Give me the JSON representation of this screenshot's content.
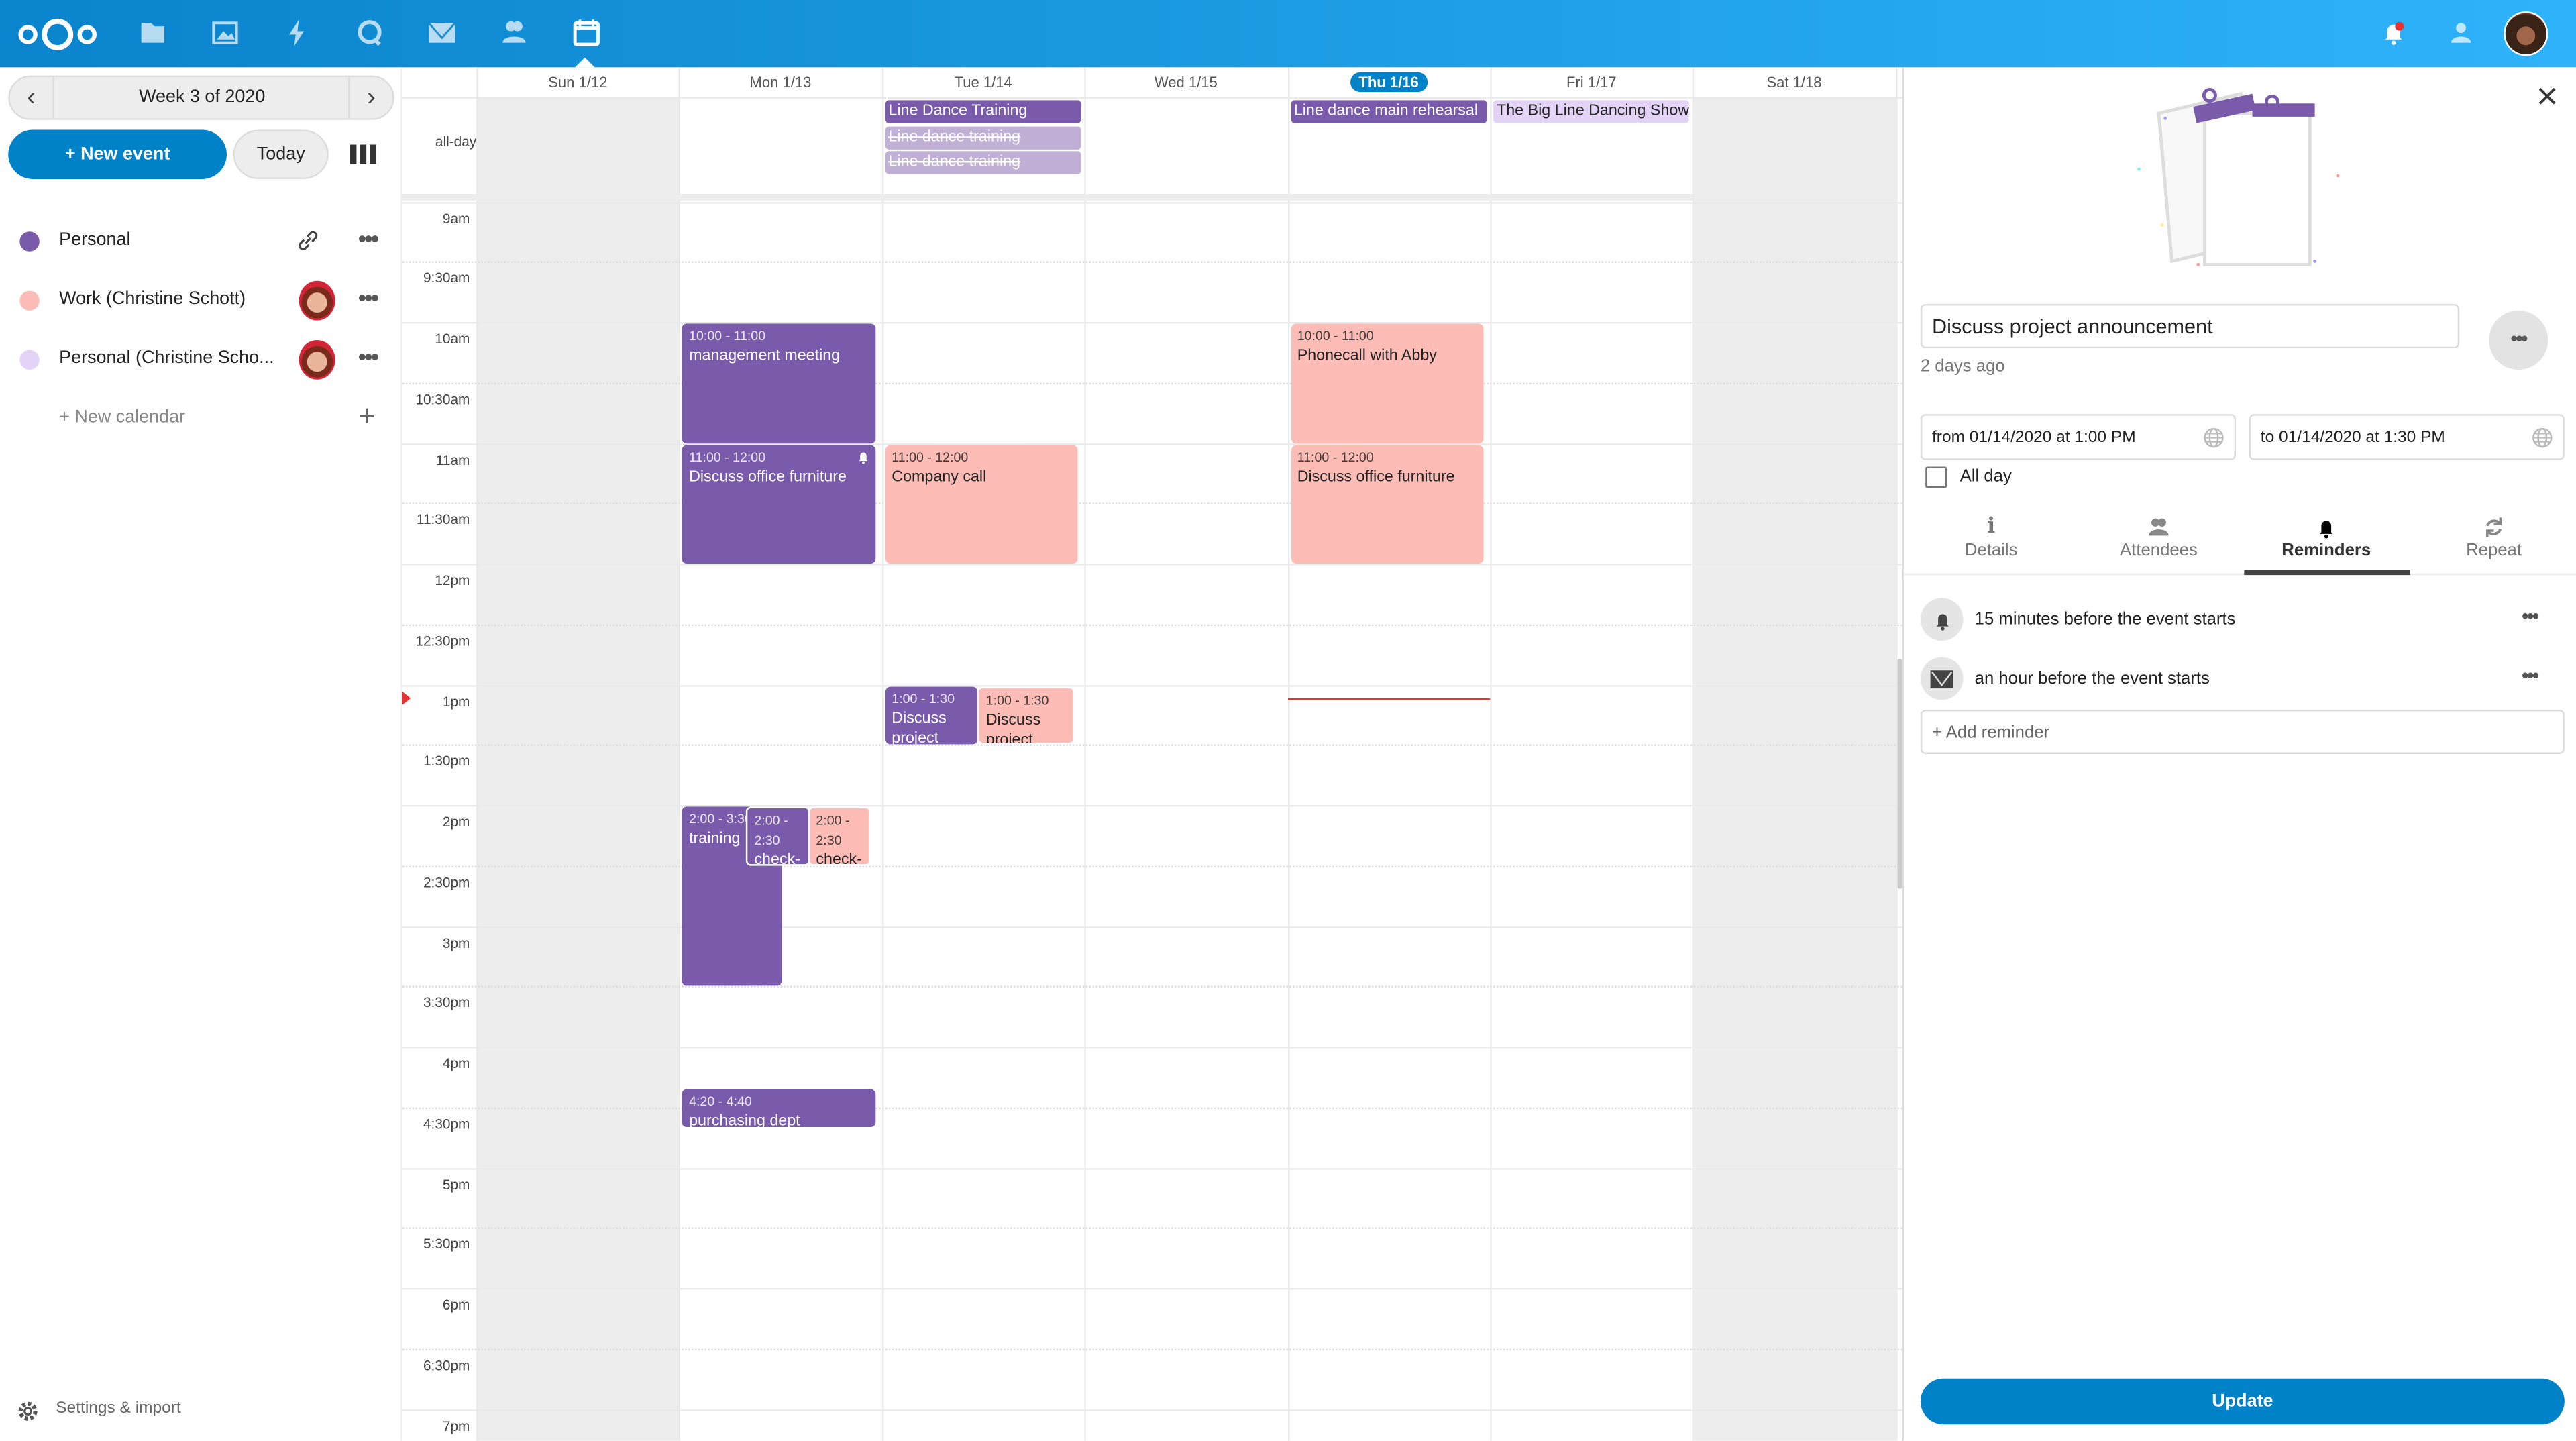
{
  "colors": {
    "brand": "#0082c9",
    "personal": "#7a5aaa",
    "work": "#fdbdb6",
    "personal_shared": "#e3d4f7",
    "now_line": "#e9322d"
  },
  "topbar": {
    "apps": [
      "files-icon",
      "photos-icon",
      "activity-icon",
      "talk-icon",
      "mail-icon",
      "contacts-icon",
      "calendar-icon"
    ],
    "active_app": "calendar",
    "right": [
      "notifications-icon",
      "contacts-menu-icon",
      "user-avatar"
    ]
  },
  "sidebar": {
    "week_label": "Week 3 of 2020",
    "new_event": "+ New event",
    "today": "Today",
    "calendars": [
      {
        "name": "Personal",
        "color": "#7a5aaa"
      },
      {
        "name": "Work (Christine Schott)",
        "color": "#fdbdb6"
      },
      {
        "name": "Personal (Christine Scho...",
        "color": "#e3d4f7"
      }
    ],
    "new_calendar": "+ New calendar",
    "settings": "Settings & import"
  },
  "calendar": {
    "days": [
      "Sun 1/12",
      "Mon 1/13",
      "Tue 1/14",
      "Wed 1/15",
      "Thu 1/16",
      "Fri 1/17",
      "Sat 1/18"
    ],
    "today": "Thu 1/16",
    "allday_label": "all-day",
    "times": [
      "9am",
      "9:30am",
      "10am",
      "10:30am",
      "11am",
      "11:30am",
      "12pm",
      "12:30pm",
      "1pm",
      "1:30pm",
      "2pm",
      "2:30pm",
      "3pm",
      "3:30pm",
      "4pm",
      "4:30pm",
      "5pm",
      "5:30pm",
      "6pm",
      "6:30pm",
      "7pm"
    ],
    "allday_events": [
      {
        "day": "Tue 1/14",
        "title": "Line Dance Training",
        "calendar": "Personal"
      },
      {
        "day": "Tue 1/14",
        "title": "Line dance training",
        "calendar": "Personal",
        "cancelled": true
      },
      {
        "day": "Tue 1/14",
        "title": "Line dance training",
        "calendar": "Personal",
        "cancelled": true
      },
      {
        "day": "Thu 1/16",
        "title": "Line dance main rehearsal",
        "calendar": "Personal"
      },
      {
        "day": "Fri 1/17",
        "title": "The Big Line Dancing Show",
        "calendar": "Personal (Christine Schott)"
      }
    ],
    "events": [
      {
        "day": "Mon 1/13",
        "time": "10:00 - 11:00",
        "title": "management meeting",
        "calendar": "Personal"
      },
      {
        "day": "Mon 1/13",
        "time": "11:00 - 12:00",
        "title": "Discuss office furniture",
        "calendar": "Personal",
        "reminder": true
      },
      {
        "day": "Tue 1/14",
        "time": "11:00 - 12:00",
        "title": "Company call",
        "calendar": "Work"
      },
      {
        "day": "Thu 1/16",
        "time": "10:00 - 11:00",
        "title": "Phonecall with Abby",
        "calendar": "Work"
      },
      {
        "day": "Thu 1/16",
        "time": "11:00 - 12:00",
        "title": "Discuss office furniture",
        "calendar": "Work"
      },
      {
        "day": "Tue 1/14",
        "time": "1:00 - 1:30",
        "title": "Discuss project announcement",
        "calendar": "Personal"
      },
      {
        "day": "Tue 1/14",
        "time": "1:00 - 1:30",
        "title": "Discuss project",
        "calendar": "Work"
      },
      {
        "day": "Mon 1/13",
        "time": "2:00 - 3:30",
        "title": "training",
        "calendar": "Personal"
      },
      {
        "day": "Mon 1/13",
        "time": "2:00 - 2:30",
        "title": "check-in",
        "calendar": "Personal"
      },
      {
        "day": "Mon 1/13",
        "time": "2:00 - 2:30",
        "title": "check-in",
        "calendar": "Work"
      },
      {
        "day": "Mon 1/13",
        "time": "4:20 - 4:40",
        "title": "purchasing dept",
        "calendar": "Personal"
      }
    ]
  },
  "panel": {
    "title": "Discuss project announcement",
    "modified": "2 days ago",
    "from": "from 01/14/2020 at 1:00 PM",
    "to": "to 01/14/2020 at 1:30 PM",
    "all_day": "All day",
    "all_day_checked": false,
    "tabs": [
      "Details",
      "Attendees",
      "Reminders",
      "Repeat"
    ],
    "active_tab": "Reminders",
    "reminders": [
      {
        "type": "bell-icon",
        "text": "15 minutes before the event starts"
      },
      {
        "type": "mail-icon",
        "text": "an hour before the event starts"
      }
    ],
    "add_reminder": "+ Add reminder",
    "update": "Update"
  }
}
